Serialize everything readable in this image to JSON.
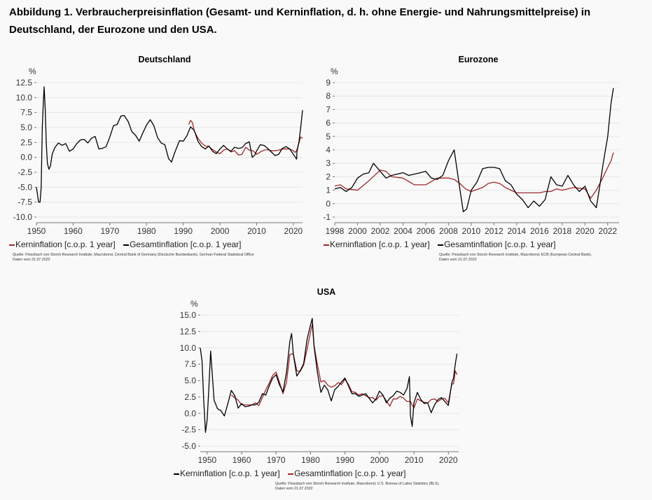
{
  "title": "Abbildung 1. Verbraucherpreisinflation (Gesamt- und Kerninflation, d. h. ohne Energie- und Nahrungsmittelpreise) in Deutschland, der Eurozone und den USA.",
  "colors": {
    "core": "#a0282a",
    "headline": "#000000",
    "grid": "#e6e6e6"
  },
  "chart_data": [
    {
      "type": "line",
      "title": "Deutschland",
      "unit": "%",
      "xlim": [
        1950,
        2022.5
      ],
      "ylim": [
        -10,
        12.5
      ],
      "xticks": [
        1950,
        1960,
        1970,
        1980,
        1990,
        2000,
        2010,
        2020
      ],
      "yticks": [
        -10,
        -7.5,
        -5,
        -2.5,
        0,
        2.5,
        5,
        7.5,
        10,
        12.5
      ],
      "ytick_labels": [
        "-10.0",
        "-7.5",
        "-5.0",
        "-2.5",
        "0.0",
        "2.5",
        "5.0",
        "7.5",
        "10.0",
        "12.5"
      ],
      "legend": [
        "Kerninflation [c.o.p. 1 year]",
        "Gesamtinflation [c.o.p. 1 year]"
      ],
      "source": [
        "Quelle: Flossbach von Storch Research Institute, Macrobond, Central Bank of Germany (Deutsche Bundesbank), German Federal Statistical Office",
        "Daten vom 21.07.2022"
      ],
      "series": [
        {
          "name": "Gesamtinflation [c.o.p. 1 year]",
          "color": "#000000",
          "x": [
            1950,
            1950.6,
            1951.0,
            1951.3,
            1951.6,
            1951.9,
            1952.1,
            1952.4,
            1952.7,
            1953.0,
            1953.4,
            1953.8,
            1954.3,
            1955,
            1956,
            1957,
            1958,
            1959,
            1960,
            1961,
            1962,
            1963,
            1964,
            1965,
            1966,
            1967,
            1968,
            1969,
            1970,
            1971,
            1972,
            1973,
            1973.9,
            1975,
            1976,
            1977,
            1978,
            1979,
            1980,
            1981,
            1982,
            1983,
            1984,
            1985,
            1986,
            1986.8,
            1987.5,
            1988,
            1989,
            1990,
            1991,
            1992,
            1993,
            1994,
            1995,
            1996,
            1997,
            1998,
            1999,
            2000,
            2001,
            2002,
            2003,
            2004,
            2005,
            2006,
            2007,
            2008,
            2008.8,
            2009.5,
            2010,
            2011,
            2012,
            2013,
            2014,
            2015,
            2016,
            2017,
            2018,
            2019,
            2020,
            2020.9,
            2021,
            2021.5,
            2022,
            2022.5
          ],
          "y": [
            -5.0,
            -7.5,
            -7.5,
            -5.0,
            5.0,
            9.5,
            11.8,
            8.0,
            2.0,
            -1.0,
            -2.0,
            -1.5,
            0.5,
            1.6,
            2.4,
            2.0,
            2.3,
            1.0,
            1.4,
            2.3,
            2.9,
            3.0,
            2.4,
            3.2,
            3.5,
            1.4,
            1.5,
            1.8,
            3.4,
            5.3,
            5.5,
            6.9,
            7.0,
            6.0,
            4.3,
            3.7,
            2.7,
            4.1,
            5.4,
            6.3,
            5.3,
            3.3,
            2.4,
            2.1,
            -0.2,
            -0.8,
            0.5,
            1.3,
            2.8,
            2.7,
            3.6,
            5.1,
            4.5,
            2.7,
            1.8,
            1.4,
            1.9,
            1.0,
            0.6,
            1.4,
            2.0,
            1.4,
            1.0,
            1.7,
            1.5,
            1.6,
            2.3,
            2.6,
            0.0,
            0.4,
            1.1,
            2.1,
            2.0,
            1.5,
            0.9,
            0.3,
            0.5,
            1.5,
            1.8,
            1.4,
            0.5,
            -0.3,
            1.0,
            2.5,
            5.0,
            7.9
          ]
        },
        {
          "name": "Kerninflation [c.o.p. 1 year]",
          "color": "#a0282a",
          "x": [
            1991.5,
            1992,
            1992.5,
            1993,
            1994,
            1995,
            1996,
            1997,
            1998,
            1999,
            2000,
            2001,
            2002,
            2003,
            2004,
            2005,
            2006,
            2007,
            2008,
            2009,
            2010,
            2011,
            2012,
            2013,
            2014,
            2015,
            2016,
            2017,
            2018,
            2019,
            2020,
            2020.5,
            2021,
            2021.5,
            2022,
            2022.5
          ],
          "y": [
            5.5,
            6.2,
            5.8,
            4.4,
            3.2,
            2.4,
            1.9,
            1.8,
            1.3,
            0.9,
            0.6,
            1.2,
            1.4,
            0.9,
            1.1,
            0.4,
            0.5,
            1.7,
            1.2,
            1.1,
            0.5,
            0.9,
            1.2,
            1.3,
            1.1,
            1.1,
            1.2,
            1.4,
            1.4,
            1.4,
            1.1,
            0.8,
            1.3,
            2.4,
            3.4,
            3.2
          ]
        }
      ]
    },
    {
      "type": "line",
      "title": "Eurozone",
      "unit": "%",
      "xlim": [
        1998,
        2023
      ],
      "ylim": [
        -1,
        9
      ],
      "xticks": [
        1998,
        2000,
        2002,
        2004,
        2006,
        2008,
        2010,
        2012,
        2014,
        2016,
        2018,
        2020,
        2022
      ],
      "yticks": [
        -1,
        0,
        1,
        2,
        3,
        4,
        5,
        6,
        7,
        8,
        9
      ],
      "ytick_labels": [
        "-1",
        "0",
        "1",
        "2",
        "3",
        "4",
        "5",
        "6",
        "7",
        "8",
        "9"
      ],
      "legend": [
        "Kerninflation [c.o.p. 1 year]",
        "Gesamtinflation [c.o.p. 1 year]"
      ],
      "source": [
        "Quelle: Flossbach von Storch Research Institute, Macrobond, ECB (European Central Bank).",
        "Daten vom 21.07.2022"
      ],
      "series": [
        {
          "name": "Gesamtinflation [c.o.p. 1 year]",
          "color": "#000000",
          "x": [
            1998,
            1998.5,
            1999,
            1999.5,
            2000,
            2000.5,
            2001,
            2001.4,
            2002,
            2002.5,
            2003,
            2004,
            2004.5,
            2005,
            2006,
            2006.5,
            2007,
            2007.5,
            2008,
            2008.5,
            2009,
            2009.3,
            2009.6,
            2010,
            2010.5,
            2011,
            2011.5,
            2012,
            2012.5,
            2013,
            2013.5,
            2014,
            2014.5,
            2015,
            2015.5,
            2016,
            2016.5,
            2017,
            2017.5,
            2018,
            2018.5,
            2019,
            2019.5,
            2020,
            2020.5,
            2021,
            2021.3,
            2021.6,
            2022,
            2022.3,
            2022.5
          ],
          "y": [
            1.1,
            1.2,
            0.9,
            1.2,
            1.9,
            2.2,
            2.3,
            3.0,
            2.4,
            1.9,
            2.1,
            2.3,
            2.1,
            2.2,
            2.4,
            1.9,
            1.8,
            2.1,
            3.2,
            4.0,
            1.1,
            -0.6,
            -0.4,
            1.0,
            1.6,
            2.6,
            2.7,
            2.7,
            2.6,
            1.7,
            1.4,
            0.7,
            0.3,
            -0.3,
            0.2,
            -0.2,
            0.3,
            2.0,
            1.4,
            1.3,
            2.1,
            1.4,
            0.9,
            1.3,
            0.2,
            -0.3,
            1.3,
            3.0,
            5.0,
            7.5,
            8.6
          ]
        },
        {
          "name": "Kerninflation [c.o.p. 1 year]",
          "color": "#a0282a",
          "x": [
            1998,
            1998.5,
            1999,
            2000,
            2001,
            2002,
            2002.5,
            2003,
            2004,
            2005,
            2006,
            2007,
            2008,
            2008.5,
            2009,
            2009.5,
            2010,
            2011,
            2011.5,
            2012,
            2012.5,
            2013,
            2014,
            2015,
            2016,
            2016.5,
            2017,
            2017.5,
            2018,
            2019,
            2020,
            2020.5,
            2021,
            2021.5,
            2022,
            2022.3,
            2022.5
          ],
          "y": [
            1.3,
            1.4,
            1.1,
            1.0,
            1.7,
            2.5,
            2.4,
            2.0,
            1.9,
            1.4,
            1.4,
            1.9,
            1.9,
            1.8,
            1.5,
            1.1,
            0.9,
            1.2,
            1.5,
            1.6,
            1.5,
            1.2,
            0.8,
            0.8,
            0.8,
            0.9,
            0.9,
            1.1,
            1.0,
            1.2,
            1.1,
            0.4,
            1.0,
            1.8,
            2.7,
            3.2,
            3.8
          ]
        }
      ]
    },
    {
      "type": "line",
      "title": "USA",
      "unit": "%",
      "xlim": [
        1948,
        2023
      ],
      "ylim": [
        -5,
        15
      ],
      "xticks": [
        1950,
        1960,
        1970,
        1980,
        1990,
        2000,
        2010,
        2020
      ],
      "yticks": [
        -5,
        -2.5,
        0,
        2.5,
        5,
        7.5,
        10,
        12.5,
        15
      ],
      "ytick_labels": [
        "-5.0",
        "-2.5",
        "0.0",
        "2.5",
        "5.0",
        "7.5",
        "10.0",
        "12.5",
        "15.0"
      ],
      "legend": [
        "Kerninflation [c.o.p. 1 year]",
        "Gesamtinflation [c.o.p. 1 year]"
      ],
      "source": [
        "Quelle: Flossbach von Storch Research Institute, Macrobond, U.S. Bureau of Labor Statistics (BLS).",
        "Daten vom 21.07.2022"
      ],
      "series": [
        {
          "name": "Gesamtinflation [c.o.p. 1 year]",
          "color": "#000000",
          "x": [
            1948,
            1948.5,
            1949,
            1949.5,
            1950,
            1950.5,
            1951,
            1952,
            1953,
            1954,
            1955,
            1956,
            1957,
            1958,
            1959,
            1960,
            1961,
            1962,
            1963,
            1964,
            1965,
            1966,
            1967,
            1968,
            1969,
            1970,
            1971,
            1972,
            1973,
            1974,
            1974.5,
            1975,
            1976,
            1977,
            1978,
            1979,
            1980,
            1980.5,
            1981,
            1982,
            1983,
            1984,
            1985,
            1986,
            1987,
            1988,
            1989,
            1990,
            1991,
            1992,
            1993,
            1994,
            1995,
            1996,
            1997,
            1998,
            1999,
            2000,
            2001,
            2002,
            2003,
            2004,
            2005,
            2006,
            2007,
            2008,
            2008.7,
            2009,
            2009.5,
            2010,
            2011,
            2012,
            2013,
            2014,
            2015,
            2016,
            2017,
            2018,
            2019,
            2020,
            2021,
            2021.5,
            2022,
            2022.5
          ],
          "y": [
            10.0,
            8.0,
            2.0,
            -2.9,
            -1.0,
            4.0,
            9.5,
            2.0,
            0.7,
            0.4,
            -0.4,
            1.5,
            3.5,
            2.7,
            0.8,
            1.5,
            1.0,
            1.1,
            1.3,
            1.3,
            1.7,
            3.0,
            2.8,
            4.2,
            5.4,
            5.9,
            4.3,
            3.3,
            6.2,
            11.0,
            12.2,
            9.1,
            5.7,
            6.5,
            7.6,
            11.3,
            13.5,
            14.5,
            10.3,
            6.2,
            3.2,
            4.3,
            3.6,
            1.9,
            3.6,
            4.1,
            4.8,
            5.4,
            4.2,
            3.0,
            3.0,
            2.6,
            2.8,
            3.0,
            2.3,
            1.6,
            2.2,
            3.4,
            2.8,
            1.6,
            2.3,
            2.7,
            3.4,
            3.2,
            2.8,
            3.8,
            5.6,
            -0.4,
            -2.0,
            1.6,
            3.2,
            2.1,
            1.5,
            1.6,
            0.1,
            1.3,
            2.1,
            2.4,
            1.8,
            1.2,
            4.7,
            5.4,
            7.5,
            9.1
          ]
        },
        {
          "name": "Kerninflation [c.o.p. 1 year]",
          "color": "#a0282a",
          "x": [
            1957,
            1958,
            1959,
            1960,
            1961,
            1962,
            1963,
            1964,
            1965,
            1966,
            1967,
            1968,
            1969,
            1970,
            1971,
            1972,
            1973,
            1974,
            1975,
            1976,
            1977,
            1978,
            1979,
            1980,
            1980.5,
            1981,
            1982,
            1983,
            1984,
            1985,
            1986,
            1987,
            1988,
            1989,
            1990,
            1991,
            1992,
            1993,
            1994,
            1995,
            1996,
            1997,
            1998,
            1999,
            2000,
            2001,
            2002,
            2003,
            2004,
            2005,
            2006,
            2007,
            2008,
            2009,
            2010,
            2011,
            2012,
            2013,
            2014,
            2015,
            2016,
            2017,
            2018,
            2019,
            2020,
            2021,
            2021.5,
            2022,
            2022.5
          ],
          "y": [
            2.8,
            2.4,
            2.0,
            1.3,
            1.3,
            1.3,
            1.3,
            1.6,
            1.2,
            2.4,
            3.6,
            4.6,
            5.8,
            6.3,
            4.7,
            3.0,
            4.7,
            9.0,
            9.1,
            6.5,
            6.4,
            7.4,
            9.8,
            12.4,
            13.6,
            10.4,
            7.4,
            4.8,
            5.0,
            4.3,
            4.0,
            4.2,
            4.7,
            4.4,
            5.2,
            4.4,
            3.3,
            3.2,
            2.8,
            3.0,
            2.7,
            2.4,
            2.4,
            2.0,
            2.6,
            2.7,
            1.9,
            1.1,
            2.2,
            2.2,
            2.6,
            2.3,
            1.8,
            1.8,
            0.8,
            2.2,
            1.9,
            1.7,
            1.6,
            2.1,
            2.2,
            1.8,
            2.2,
            2.3,
            1.6,
            4.5,
            4.5,
            6.5,
            5.9
          ]
        }
      ]
    }
  ]
}
